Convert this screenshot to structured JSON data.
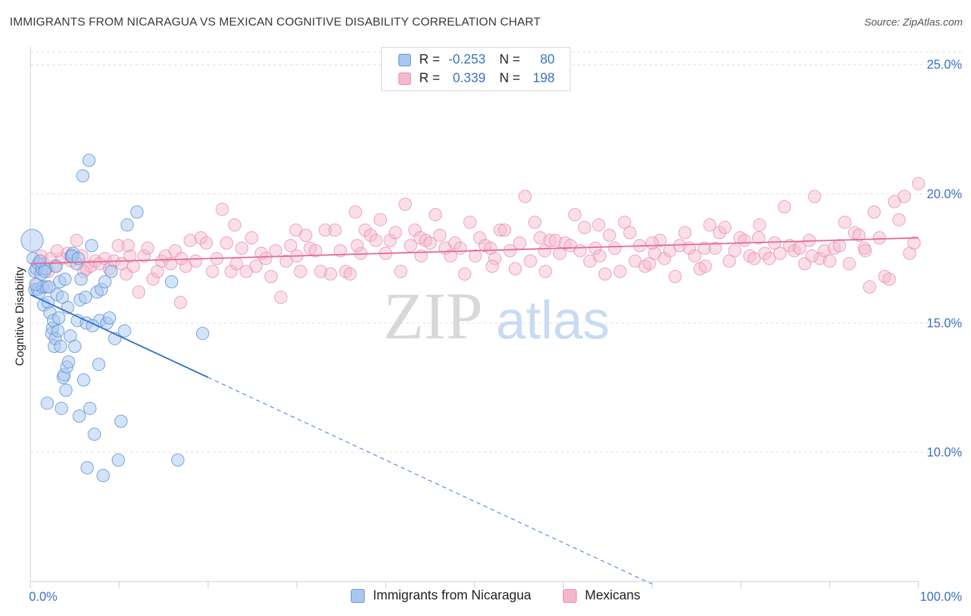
{
  "title": "IMMIGRANTS FROM NICARAGUA VS MEXICAN COGNITIVE DISABILITY CORRELATION CHART",
  "source": "Source: ZipAtlas.com",
  "watermark": {
    "zip": "ZIP",
    "atlas": "atlas"
  },
  "legend": {
    "rows": [
      {
        "r_label": "R =",
        "r_value": "-0.253",
        "n_label": "N =",
        "n_value": "80"
      },
      {
        "r_label": "R =",
        "r_value": "0.339",
        "n_label": "N =",
        "n_value": "198"
      }
    ]
  },
  "bottom_legend": [
    "Immigrants from Nicaragua",
    "Mexicans"
  ],
  "colors": {
    "blue_fill": "#a9c8ef",
    "blue_stroke": "#5b8fd6",
    "blue_line": "#2f6fcf",
    "pink_fill": "#f5b8cb",
    "pink_stroke": "#e88aa8",
    "pink_line": "#e36d96",
    "tick": "#3b72c4",
    "grid": "#dddddd"
  },
  "chart_data": {
    "type": "scatter",
    "title": "IMMIGRANTS FROM NICARAGUA VS MEXICAN COGNITIVE DISABILITY CORRELATION CHART",
    "xlabel": "",
    "ylabel": "Cognitive Disability",
    "xlim": [
      0,
      100
    ],
    "ylim": [
      5,
      25.5
    ],
    "x_tick_labels": [
      "0.0%",
      "100.0%"
    ],
    "y_ticks": [
      10,
      15,
      20,
      25
    ],
    "y_tick_labels": [
      "10.0%",
      "15.0%",
      "20.0%",
      "25.0%"
    ],
    "grid": true,
    "legend_position": "top-center",
    "series": [
      {
        "name": "Immigrants from Nicaragua",
        "r": -0.253,
        "n": 80,
        "trend": {
          "x0": 0,
          "y0": 16.1,
          "x1": 20,
          "y1": 12.9,
          "dashed_to_x": 70
        },
        "points": [
          [
            0.2,
            18.2
          ],
          [
            0.3,
            17.5
          ],
          [
            0.5,
            17.0
          ],
          [
            0.5,
            16.3
          ],
          [
            0.7,
            17.1
          ],
          [
            0.8,
            16.3
          ],
          [
            0.9,
            17.3
          ],
          [
            1.0,
            16.2
          ],
          [
            1.2,
            16.9
          ],
          [
            1.3,
            17.1
          ],
          [
            1.4,
            16.4
          ],
          [
            1.5,
            15.7
          ],
          [
            1.7,
            17.1
          ],
          [
            1.8,
            16.4
          ],
          [
            1.9,
            11.9
          ],
          [
            2.0,
            15.8
          ],
          [
            2.2,
            15.4
          ],
          [
            2.4,
            14.6
          ],
          [
            2.5,
            14.8
          ],
          [
            2.6,
            15.1
          ],
          [
            2.7,
            14.1
          ],
          [
            2.8,
            14.4
          ],
          [
            3.0,
            16.1
          ],
          [
            3.1,
            14.7
          ],
          [
            3.2,
            15.2
          ],
          [
            3.3,
            16.6
          ],
          [
            3.4,
            14.1
          ],
          [
            3.5,
            11.7
          ],
          [
            3.7,
            12.9
          ],
          [
            3.8,
            13.0
          ],
          [
            3.9,
            16.7
          ],
          [
            4.0,
            12.4
          ],
          [
            4.1,
            13.3
          ],
          [
            4.3,
            13.5
          ],
          [
            4.5,
            14.5
          ],
          [
            4.6,
            17.6
          ],
          [
            4.8,
            17.7
          ],
          [
            5.0,
            14.1
          ],
          [
            5.2,
            17.3
          ],
          [
            5.3,
            15.1
          ],
          [
            5.5,
            11.4
          ],
          [
            5.6,
            15.9
          ],
          [
            5.7,
            16.7
          ],
          [
            5.9,
            20.7
          ],
          [
            6.0,
            12.8
          ],
          [
            6.3,
            15.0
          ],
          [
            6.4,
            9.4
          ],
          [
            6.6,
            21.3
          ],
          [
            6.7,
            11.7
          ],
          [
            6.9,
            18.0
          ],
          [
            7.2,
            10.7
          ],
          [
            7.5,
            16.2
          ],
          [
            7.7,
            13.4
          ],
          [
            7.8,
            15.1
          ],
          [
            8.0,
            16.3
          ],
          [
            8.2,
            9.1
          ],
          [
            8.6,
            15.0
          ],
          [
            8.9,
            15.2
          ],
          [
            9.1,
            17.0
          ],
          [
            9.5,
            14.4
          ],
          [
            9.9,
            9.7
          ],
          [
            10.2,
            11.2
          ],
          [
            10.6,
            14.7
          ],
          [
            10.9,
            18.8
          ],
          [
            12.0,
            19.3
          ],
          [
            15.9,
            16.6
          ],
          [
            16.6,
            9.7
          ],
          [
            19.4,
            14.6
          ],
          [
            4.7,
            17.6
          ],
          [
            2.1,
            16.4
          ],
          [
            1.1,
            17.4
          ],
          [
            0.6,
            16.5
          ],
          [
            3.6,
            16.0
          ],
          [
            2.9,
            17.2
          ],
          [
            5.4,
            17.5
          ],
          [
            6.2,
            16.0
          ],
          [
            1.6,
            17.0
          ],
          [
            4.2,
            15.6
          ],
          [
            7.0,
            14.9
          ],
          [
            8.4,
            16.6
          ]
        ]
      },
      {
        "name": "Mexicans",
        "r": 0.339,
        "n": 198,
        "trend": {
          "x0": 0,
          "y0": 17.3,
          "x1": 100,
          "y1": 18.3
        },
        "points": [
          [
            0.8,
            16.5
          ],
          [
            1.2,
            17.6
          ],
          [
            1.5,
            17.3
          ],
          [
            2.0,
            17.0
          ],
          [
            2.3,
            17.5
          ],
          [
            2.8,
            17.2
          ],
          [
            3.5,
            17.5
          ],
          [
            4.2,
            17.7
          ],
          [
            4.6,
            17.4
          ],
          [
            5.2,
            18.2
          ],
          [
            5.8,
            17.6
          ],
          [
            6.3,
            17.1
          ],
          [
            6.8,
            17.2
          ],
          [
            7.3,
            17.4
          ],
          [
            7.8,
            17.3
          ],
          [
            8.4,
            17.5
          ],
          [
            8.9,
            17.1
          ],
          [
            9.4,
            17.4
          ],
          [
            9.9,
            18.0
          ],
          [
            10.3,
            17.3
          ],
          [
            10.8,
            16.9
          ],
          [
            11.2,
            17.6
          ],
          [
            11.6,
            17.2
          ],
          [
            12.2,
            16.2
          ],
          [
            12.8,
            17.6
          ],
          [
            13.2,
            17.9
          ],
          [
            13.8,
            16.7
          ],
          [
            14.3,
            17.0
          ],
          [
            14.8,
            17.4
          ],
          [
            15.2,
            17.6
          ],
          [
            15.8,
            17.3
          ],
          [
            16.3,
            17.8
          ],
          [
            16.9,
            15.8
          ],
          [
            17.5,
            17.2
          ],
          [
            18.0,
            18.2
          ],
          [
            18.6,
            17.4
          ],
          [
            19.2,
            18.3
          ],
          [
            19.8,
            18.1
          ],
          [
            20.5,
            17.0
          ],
          [
            21.0,
            17.5
          ],
          [
            21.6,
            19.4
          ],
          [
            22.1,
            18.1
          ],
          [
            22.6,
            17.0
          ],
          [
            23.2,
            17.3
          ],
          [
            23.8,
            17.9
          ],
          [
            24.3,
            17.0
          ],
          [
            24.9,
            18.3
          ],
          [
            25.4,
            17.2
          ],
          [
            26.0,
            17.7
          ],
          [
            26.5,
            17.5
          ],
          [
            27.1,
            16.8
          ],
          [
            27.6,
            17.8
          ],
          [
            28.2,
            16.0
          ],
          [
            28.8,
            17.4
          ],
          [
            29.3,
            18.0
          ],
          [
            29.9,
            18.6
          ],
          [
            30.4,
            17.0
          ],
          [
            31.0,
            18.4
          ],
          [
            31.5,
            17.9
          ],
          [
            32.1,
            17.8
          ],
          [
            32.7,
            17.0
          ],
          [
            33.2,
            18.6
          ],
          [
            33.8,
            16.9
          ],
          [
            34.3,
            18.6
          ],
          [
            34.9,
            17.8
          ],
          [
            35.5,
            17.0
          ],
          [
            36.0,
            16.9
          ],
          [
            36.6,
            19.3
          ],
          [
            37.2,
            17.7
          ],
          [
            37.7,
            18.6
          ],
          [
            38.3,
            18.4
          ],
          [
            38.9,
            18.2
          ],
          [
            39.4,
            19.0
          ],
          [
            40.0,
            17.7
          ],
          [
            40.5,
            18.2
          ],
          [
            41.1,
            18.5
          ],
          [
            41.7,
            17.0
          ],
          [
            42.2,
            19.6
          ],
          [
            42.8,
            18.0
          ],
          [
            43.3,
            18.6
          ],
          [
            43.9,
            18.3
          ],
          [
            44.5,
            18.2
          ],
          [
            45.0,
            18.1
          ],
          [
            45.6,
            19.2
          ],
          [
            46.1,
            18.4
          ],
          [
            46.7,
            17.9
          ],
          [
            47.3,
            17.6
          ],
          [
            47.8,
            18.1
          ],
          [
            48.4,
            17.9
          ],
          [
            48.9,
            16.9
          ],
          [
            49.5,
            18.9
          ],
          [
            50.1,
            17.6
          ],
          [
            50.6,
            18.3
          ],
          [
            51.2,
            18.0
          ],
          [
            51.8,
            17.9
          ],
          [
            52.3,
            17.5
          ],
          [
            52.9,
            18.6
          ],
          [
            53.4,
            18.6
          ],
          [
            54.0,
            17.8
          ],
          [
            54.6,
            17.1
          ],
          [
            55.1,
            18.1
          ],
          [
            55.7,
            19.9
          ],
          [
            56.3,
            17.4
          ],
          [
            56.8,
            18.9
          ],
          [
            57.4,
            18.3
          ],
          [
            57.9,
            17.8
          ],
          [
            58.5,
            18.2
          ],
          [
            59.1,
            18.2
          ],
          [
            59.6,
            17.7
          ],
          [
            60.2,
            18.1
          ],
          [
            60.8,
            18.0
          ],
          [
            61.3,
            19.2
          ],
          [
            61.9,
            17.8
          ],
          [
            62.4,
            18.7
          ],
          [
            63.0,
            17.4
          ],
          [
            63.6,
            17.9
          ],
          [
            64.1,
            17.6
          ],
          [
            64.7,
            16.9
          ],
          [
            65.2,
            18.4
          ],
          [
            65.8,
            17.9
          ],
          [
            66.4,
            17.0
          ],
          [
            66.9,
            18.9
          ],
          [
            67.5,
            18.5
          ],
          [
            68.1,
            17.4
          ],
          [
            68.6,
            18.0
          ],
          [
            69.2,
            17.2
          ],
          [
            69.7,
            17.3
          ],
          [
            70.3,
            17.7
          ],
          [
            70.9,
            18.2
          ],
          [
            71.4,
            17.5
          ],
          [
            72.0,
            17.8
          ],
          [
            72.6,
            16.8
          ],
          [
            73.1,
            18.0
          ],
          [
            73.7,
            18.5
          ],
          [
            74.2,
            17.9
          ],
          [
            74.8,
            17.6
          ],
          [
            75.4,
            17.1
          ],
          [
            75.9,
            17.9
          ],
          [
            76.5,
            18.8
          ],
          [
            77.1,
            17.9
          ],
          [
            77.6,
            18.5
          ],
          [
            78.2,
            18.7
          ],
          [
            78.7,
            17.4
          ],
          [
            79.3,
            17.8
          ],
          [
            79.9,
            18.3
          ],
          [
            80.4,
            18.2
          ],
          [
            81.0,
            17.6
          ],
          [
            81.5,
            17.5
          ],
          [
            82.1,
            18.8
          ],
          [
            82.7,
            17.7
          ],
          [
            83.2,
            17.5
          ],
          [
            83.8,
            18.1
          ],
          [
            84.4,
            17.7
          ],
          [
            84.9,
            19.5
          ],
          [
            85.5,
            18.0
          ],
          [
            86.0,
            17.8
          ],
          [
            86.6,
            17.9
          ],
          [
            87.2,
            17.3
          ],
          [
            87.7,
            18.2
          ],
          [
            88.3,
            19.9
          ],
          [
            88.9,
            17.5
          ],
          [
            89.4,
            17.8
          ],
          [
            90.0,
            17.4
          ],
          [
            90.5,
            17.9
          ],
          [
            91.1,
            18.0
          ],
          [
            91.7,
            18.9
          ],
          [
            92.2,
            17.3
          ],
          [
            92.8,
            18.5
          ],
          [
            93.3,
            18.4
          ],
          [
            93.9,
            17.9
          ],
          [
            94.5,
            16.4
          ],
          [
            95.0,
            19.3
          ],
          [
            95.6,
            18.3
          ],
          [
            96.2,
            16.8
          ],
          [
            96.7,
            16.7
          ],
          [
            97.3,
            19.7
          ],
          [
            97.8,
            19.0
          ],
          [
            98.4,
            19.9
          ],
          [
            99.0,
            17.7
          ],
          [
            99.5,
            18.1
          ],
          [
            100.0,
            20.4
          ],
          [
            1.0,
            17.3
          ],
          [
            3.0,
            17.8
          ],
          [
            6.0,
            17.0
          ],
          [
            11.0,
            18.0
          ],
          [
            17.0,
            17.5
          ],
          [
            23.0,
            18.8
          ],
          [
            30.0,
            17.6
          ],
          [
            36.8,
            18.0
          ],
          [
            44.0,
            17.6
          ],
          [
            52.0,
            17.2
          ],
          [
            58.0,
            17.0
          ],
          [
            64.0,
            18.8
          ],
          [
            70.0,
            18.1
          ],
          [
            76.0,
            17.2
          ],
          [
            82.0,
            18.3
          ],
          [
            88.0,
            17.6
          ],
          [
            94.0,
            17.8
          ]
        ]
      }
    ]
  }
}
